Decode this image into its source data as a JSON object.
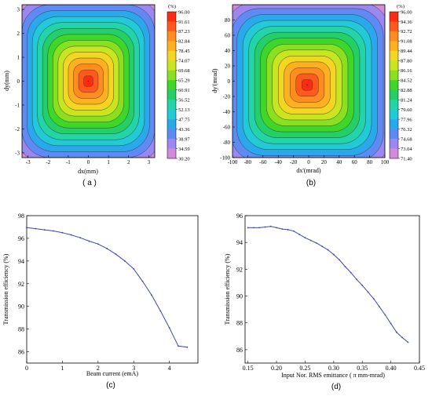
{
  "chart_data": [
    {
      "id": "a",
      "type": "heatmap",
      "panel_label": "( a )",
      "xlabel": "dx(mm)",
      "ylabel": "dy(mm)",
      "xlim": [
        -3.3,
        3.3
      ],
      "ylim": [
        -3.2,
        3.2
      ],
      "x_ticks": [
        -3,
        -2,
        -1,
        0,
        1,
        2,
        3
      ],
      "y_ticks": [
        -3,
        -2,
        -1,
        0,
        1,
        2,
        3
      ],
      "colorbar_unit": "(%)",
      "colorbar_labels": [
        "96.00",
        "91.61",
        "87.23",
        "82.84",
        "78.45",
        "74.07",
        "69.68",
        "65.29",
        "60.91",
        "56.52",
        "52.13",
        "47.75",
        "43.36",
        "38.97",
        "34.59",
        "30.20"
      ],
      "value_range": [
        30.2,
        96.0
      ],
      "peak_center": [
        0,
        0
      ],
      "shape": "rounded-square"
    },
    {
      "id": "b",
      "type": "heatmap",
      "panel_label": "(b)",
      "xlabel": "dx'(mrad)",
      "ylabel": "dy'(mrad)",
      "xlim": [
        -100,
        100
      ],
      "ylim": [
        -100,
        100
      ],
      "x_ticks": [
        -100,
        -80,
        -60,
        -40,
        -20,
        0,
        20,
        40,
        60,
        80,
        100
      ],
      "y_ticks": [
        -100,
        -80,
        -60,
        -40,
        -20,
        0,
        20,
        40,
        60,
        80
      ],
      "colorbar_unit": "(%)",
      "colorbar_labels": [
        "96.00",
        "94.36",
        "92.72",
        "91.08",
        "89.44",
        "87.80",
        "86.16",
        "84.52",
        "82.88",
        "81.24",
        "79.60",
        "77.96",
        "76.32",
        "74.68",
        "73.04",
        "71.40"
      ],
      "value_range": [
        71.4,
        96.0
      ],
      "peak_center": [
        -2,
        -5
      ],
      "shape": "rounded-square"
    },
    {
      "id": "c",
      "type": "line",
      "panel_label": "(c)",
      "xlabel": "Beam current (emA)",
      "ylabel": "Transmission efficiency (%)",
      "xlim": [
        0,
        4.8
      ],
      "ylim": [
        85,
        98
      ],
      "x_ticks": [
        0,
        1,
        2,
        3,
        4
      ],
      "y_ticks": [
        86,
        88,
        90,
        92,
        94,
        96,
        98
      ],
      "x": [
        0,
        0.25,
        0.5,
        0.75,
        1.0,
        1.25,
        1.5,
        1.75,
        2.0,
        2.25,
        2.5,
        2.75,
        3.0,
        3.25,
        3.5,
        3.75,
        4.0,
        4.25,
        4.5
      ],
      "y": [
        96.95,
        96.85,
        96.75,
        96.65,
        96.5,
        96.3,
        96.05,
        95.75,
        95.5,
        95.1,
        94.6,
        94.0,
        93.3,
        92.2,
        91.0,
        89.6,
        88.1,
        86.5,
        86.4
      ]
    },
    {
      "id": "d",
      "type": "line",
      "panel_label": "(d)",
      "xlabel": "Input Nor. RMS emittance ( π mm-mrad)",
      "ylabel": "Transmission efficiency (%)",
      "xlim": [
        0.145,
        0.45
      ],
      "ylim": [
        85,
        96
      ],
      "x_ticks": [
        0.15,
        0.2,
        0.25,
        0.3,
        0.35,
        0.4,
        0.45
      ],
      "x_tick_labels": [
        "0.15",
        "0.20",
        "0.25",
        "0.30",
        "0.35",
        "0.40",
        "0.45"
      ],
      "y_ticks": [
        86,
        88,
        90,
        92,
        94,
        96
      ],
      "x": [
        0.15,
        0.16,
        0.17,
        0.18,
        0.19,
        0.2,
        0.21,
        0.22,
        0.23,
        0.24,
        0.25,
        0.26,
        0.27,
        0.28,
        0.29,
        0.3,
        0.31,
        0.32,
        0.33,
        0.34,
        0.35,
        0.36,
        0.37,
        0.38,
        0.39,
        0.4,
        0.41,
        0.42,
        0.43
      ],
      "y": [
        95.1,
        95.1,
        95.1,
        95.15,
        95.2,
        95.1,
        95.0,
        94.95,
        94.85,
        94.6,
        94.35,
        94.15,
        93.95,
        93.7,
        93.45,
        93.1,
        92.7,
        92.2,
        91.75,
        91.25,
        90.8,
        90.3,
        89.8,
        89.2,
        88.6,
        87.95,
        87.3,
        86.9,
        86.55
      ]
    }
  ],
  "colors": {
    "line": "#3a44b0",
    "palette": [
      "#ff2a10",
      "#ff5a1c",
      "#ff8c1f",
      "#ffb020",
      "#f2d622",
      "#c8e51f",
      "#88e021",
      "#3fd62a",
      "#23cf66",
      "#22d4a8",
      "#22c9d6",
      "#2aa8ec",
      "#5f8af4",
      "#9a87f0",
      "#d38ad9",
      "#f8b2c8"
    ]
  }
}
